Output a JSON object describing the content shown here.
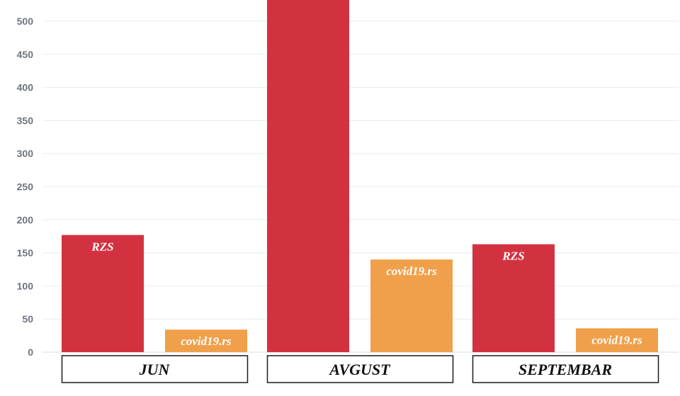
{
  "chart_data": {
    "type": "bar",
    "categories": [
      "JUN",
      "AVGUST",
      "SEPTEMBAR"
    ],
    "series": [
      {
        "name": "RZS",
        "values": [
          177,
          540,
          163
        ],
        "color": "#d23240",
        "labels": [
          "RZS",
          "",
          "RZS"
        ]
      },
      {
        "name": "covid19.rs",
        "values": [
          34,
          140,
          36
        ],
        "color": "#f0a04b",
        "labels": [
          "covid19.rs",
          "covid19.rs",
          "covid19.rs"
        ]
      }
    ],
    "yticks": [
      "0",
      "50",
      "100",
      "150",
      "200",
      "250",
      "300",
      "350",
      "400",
      "450",
      "500"
    ],
    "ylim": [
      0,
      532
    ],
    "grid": true,
    "title": "",
    "xlabel": "",
    "ylabel": ""
  }
}
